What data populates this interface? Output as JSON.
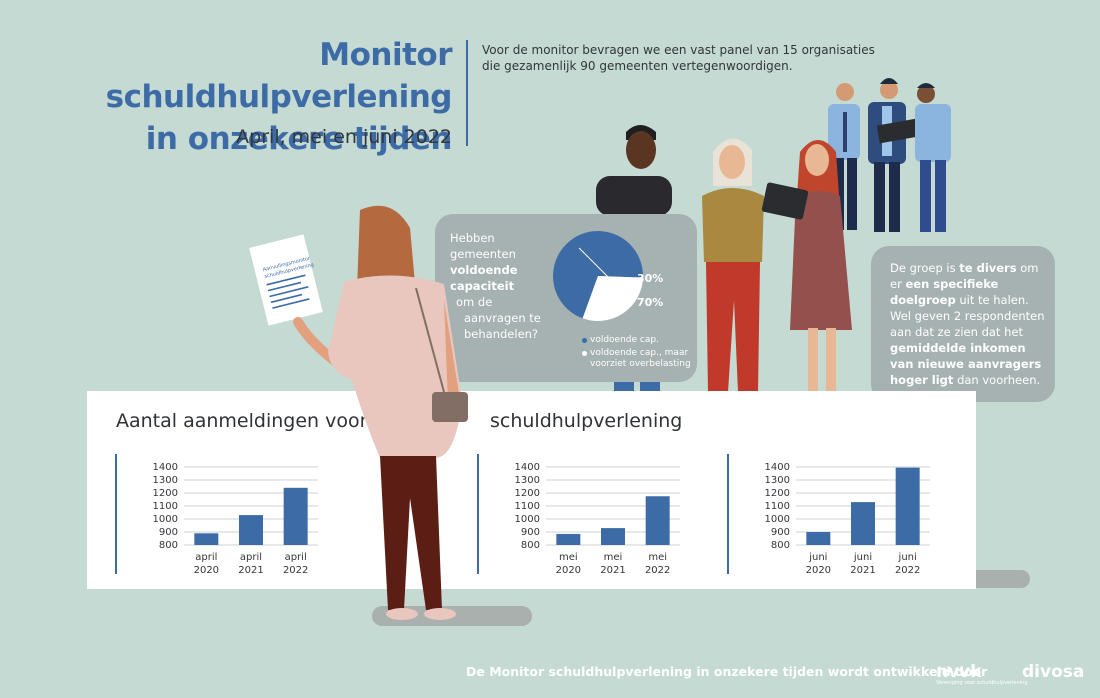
{
  "header": {
    "title_line1": "Monitor schuldhulpverlening",
    "title_line2": "in onzekere tijden",
    "subtitle": "April, mei en juni 2022",
    "intro_line1": "Voor de monitor bevragen we een vast panel van 15 organisaties",
    "intro_line2": "die gezamenlijk 90 gemeenten vertegenwoordigen."
  },
  "document_prop": {
    "line1": "Aanvullingsmonitor",
    "line2": "schuldhulpverlening"
  },
  "bubble1": {
    "q1": "Hebben gemeenten",
    "q2": "voldoende",
    "q3": "capaciteit",
    "q4": "om de",
    "q5": "aanvragen te",
    "q6": "behandelen?"
  },
  "bubble2": {
    "p1": "De groep is ",
    "b1": "te divers",
    "p2": " om er ",
    "b2": "een specifieke doelgroep",
    "p3": " uit te halen. Wel geven 2 respondenten aan dat ze zien dat het ",
    "b3": "gemiddelde inkomen van nieuwe aanvragers hoger ligt",
    "p4": " dan voorheen."
  },
  "panel": {
    "title_left": "Aantal aanmeldingen voor",
    "title_right": "schuldhulpverlening"
  },
  "footer": {
    "text": "De Monitor schuldhulpverlening in onzekere tijden wordt ontwikkeld door",
    "logo1": "nvvk",
    "logo1_sub": "Vereniging voor schuldhulpverlening",
    "logo2": "divosa"
  },
  "colors": {
    "bar": "#3d6ba6",
    "pie_main": "#3d6ba6",
    "pie_other": "#ffffff",
    "bubble": "#a6b1b2",
    "title": "#3d6ba6"
  },
  "chart_data": [
    {
      "type": "pie",
      "labels": [
        "voldoende cap.",
        "voldoende cap., maar voorziet overbelasting"
      ],
      "values": [
        70,
        30
      ],
      "value_labels": [
        "70%",
        "30%"
      ],
      "colors": [
        "#3d6ba6",
        "#ffffff"
      ]
    },
    {
      "type": "bar",
      "categories": [
        "april 2020",
        "april 2021",
        "april 2022"
      ],
      "categories_line1": [
        "april",
        "april",
        "april"
      ],
      "categories_line2": [
        "2020",
        "2021",
        "2022"
      ],
      "values": [
        890,
        1030,
        1240
      ],
      "ylim": [
        800,
        1400
      ],
      "yticks": [
        800,
        900,
        1000,
        1100,
        1200,
        1300,
        1400
      ],
      "grid": true
    },
    {
      "type": "bar",
      "categories": [
        "mei 2020",
        "mei 2021",
        "mei 2022"
      ],
      "categories_line1": [
        "mei",
        "mei",
        "mei"
      ],
      "categories_line2": [
        "2020",
        "2021",
        "2022"
      ],
      "values": [
        885,
        930,
        1175
      ],
      "ylim": [
        800,
        1400
      ],
      "yticks": [
        800,
        900,
        1000,
        1100,
        1200,
        1300,
        1400
      ],
      "grid": true
    },
    {
      "type": "bar",
      "categories": [
        "juni 2020",
        "juni 2021",
        "juni 2022"
      ],
      "categories_line1": [
        "juni",
        "juni",
        "juni"
      ],
      "categories_line2": [
        "2020",
        "2021",
        "2022"
      ],
      "values": [
        900,
        1130,
        1395
      ],
      "ylim": [
        800,
        1400
      ],
      "yticks": [
        800,
        900,
        1000,
        1100,
        1200,
        1300,
        1400
      ],
      "grid": true
    }
  ]
}
